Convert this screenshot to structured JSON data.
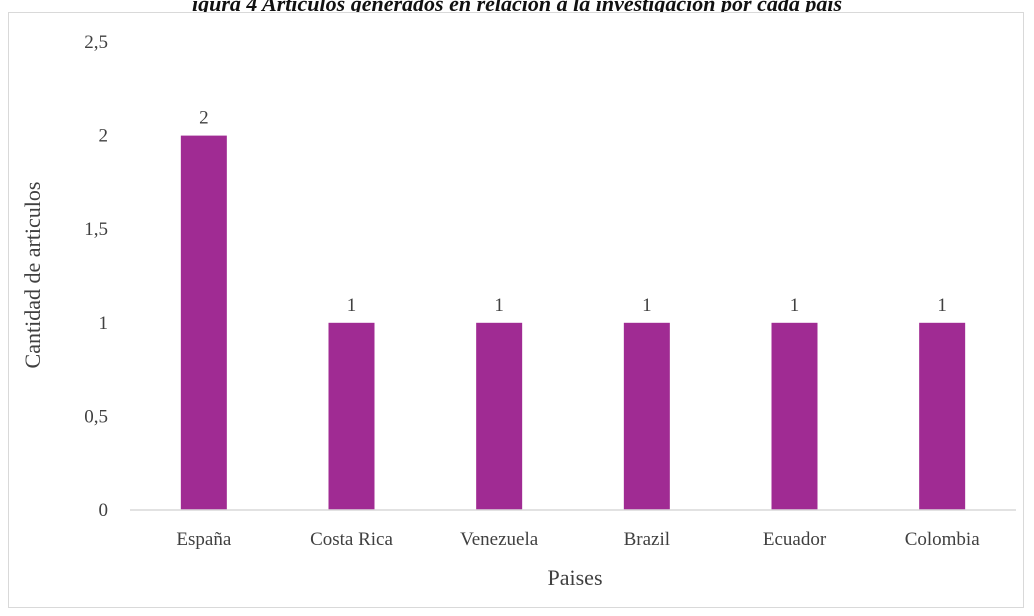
{
  "header": {
    "title": "igura 4 Artículos generados en relación a la investigación por cada país"
  },
  "chart_data": {
    "type": "bar",
    "title": "",
    "xlabel": "Paises",
    "ylabel": "Cantidad de articulos",
    "categories": [
      "España",
      "Costa Rica",
      "Venezuela",
      "Brazil",
      "Ecuador",
      "Colombia"
    ],
    "series": [
      {
        "values": [
          2,
          1,
          1,
          1,
          1,
          1
        ]
      }
    ],
    "data_labels": [
      "2",
      "1",
      "1",
      "1",
      "1",
      "1"
    ],
    "ylim": [
      0,
      2.5
    ],
    "yticks": [
      0,
      0.5,
      1,
      1.5,
      2,
      2.5
    ],
    "ytick_labels": [
      "0",
      "0,5",
      "1",
      "1,5",
      "2",
      "2,5"
    ],
    "grid": false,
    "legend": "none",
    "colors": {
      "bar": "#A02B93",
      "axis_line": "#d9d9d9",
      "text": "#404040"
    }
  }
}
